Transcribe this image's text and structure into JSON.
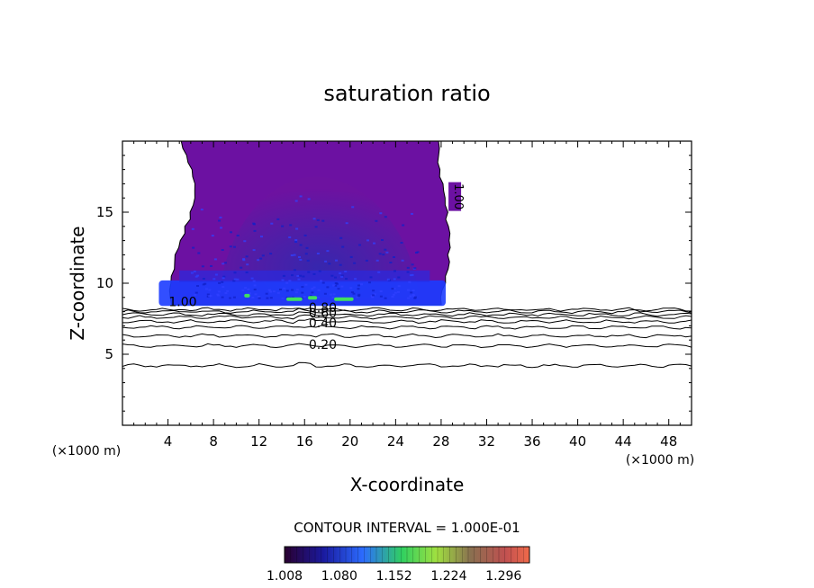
{
  "chart_data": {
    "type": "heatmap",
    "title": "saturation ratio",
    "xlabel": "X-coordinate",
    "ylabel": "Z-coordinate",
    "x_unit": "(×1000 m)",
    "y_unit": "(×1000 m)",
    "xlim": [
      0,
      50
    ],
    "ylim": [
      0,
      20
    ],
    "x_ticks": [
      4,
      8,
      12,
      16,
      20,
      24,
      28,
      32,
      36,
      40,
      44,
      48
    ],
    "y_ticks": [
      5,
      10,
      15
    ],
    "contour_interval_text": "CONTOUR INTERVAL = 1.000E-01",
    "contour_labels": [
      {
        "text": "1.00",
        "x": 29.2,
        "y": 16.1
      },
      {
        "text": "1.00",
        "x": 5.3,
        "y": 8.7
      },
      {
        "text": "0.80",
        "x": 17.6,
        "y": 8.3
      },
      {
        "text": "0.60",
        "x": 17.6,
        "y": 7.9
      },
      {
        "text": "0.40",
        "x": 17.6,
        "y": 7.2
      },
      {
        "text": "0.20",
        "x": 17.6,
        "y": 5.7
      }
    ],
    "contour_levels": [
      {
        "level": 0.1,
        "z": 4.2
      },
      {
        "level": 0.2,
        "z": 5.6
      },
      {
        "level": 0.3,
        "z": 6.3
      },
      {
        "level": 0.4,
        "z": 6.9
      },
      {
        "level": 0.5,
        "z": 7.3
      },
      {
        "level": 0.6,
        "z": 7.6
      },
      {
        "level": 0.7,
        "z": 7.8
      },
      {
        "level": 0.8,
        "z": 8.0
      },
      {
        "level": 0.9,
        "z": 8.15
      }
    ],
    "supersaturated_region": {
      "x_range": [
        3.2,
        28.6
      ],
      "z_range": [
        8.4,
        20
      ],
      "base_value_range": [
        1.008,
        1.1
      ],
      "max_near_base": 1.16
    },
    "colorbar": {
      "ticks": [
        "1.008",
        "1.080",
        "1.152",
        "1.224",
        "1.296"
      ],
      "range": [
        1.008,
        1.33
      ]
    }
  }
}
